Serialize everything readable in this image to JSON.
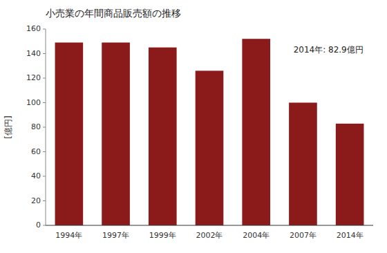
{
  "chart_data": {
    "type": "bar",
    "title": "小売業の年間商品販売額の推移",
    "ylabel": "[億円]",
    "annotation": "2014年: 82.9億円",
    "categories": [
      "1994年",
      "1997年",
      "1999年",
      "2002年",
      "2004年",
      "2007年",
      "2014年"
    ],
    "values": [
      149.0,
      149.0,
      145.0,
      126.0,
      152.0,
      100.0,
      82.9
    ],
    "color": "#8B1A1A",
    "ylim": [
      0,
      160
    ],
    "yticks": [
      0,
      20,
      40,
      60,
      80,
      100,
      120,
      140,
      160
    ],
    "grid": false
  }
}
